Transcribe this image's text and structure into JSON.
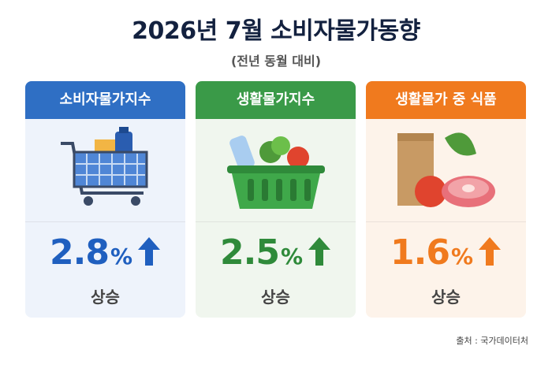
{
  "header": {
    "title": "2026년 7월 소비자물가동향",
    "subtitle": "(전년 동월 대비)"
  },
  "cards": [
    {
      "label": "소비자물가지수",
      "value": 2.8,
      "unit": "%",
      "change": "상승"
    },
    {
      "label": "생활물가지수",
      "value": 2.5,
      "unit": "%",
      "change": "상승"
    },
    {
      "label": "생활물가 중 식품",
      "value": 1.6,
      "unit": "%",
      "change": "상승"
    }
  ],
  "source": "출처 : 국가데이터처"
}
